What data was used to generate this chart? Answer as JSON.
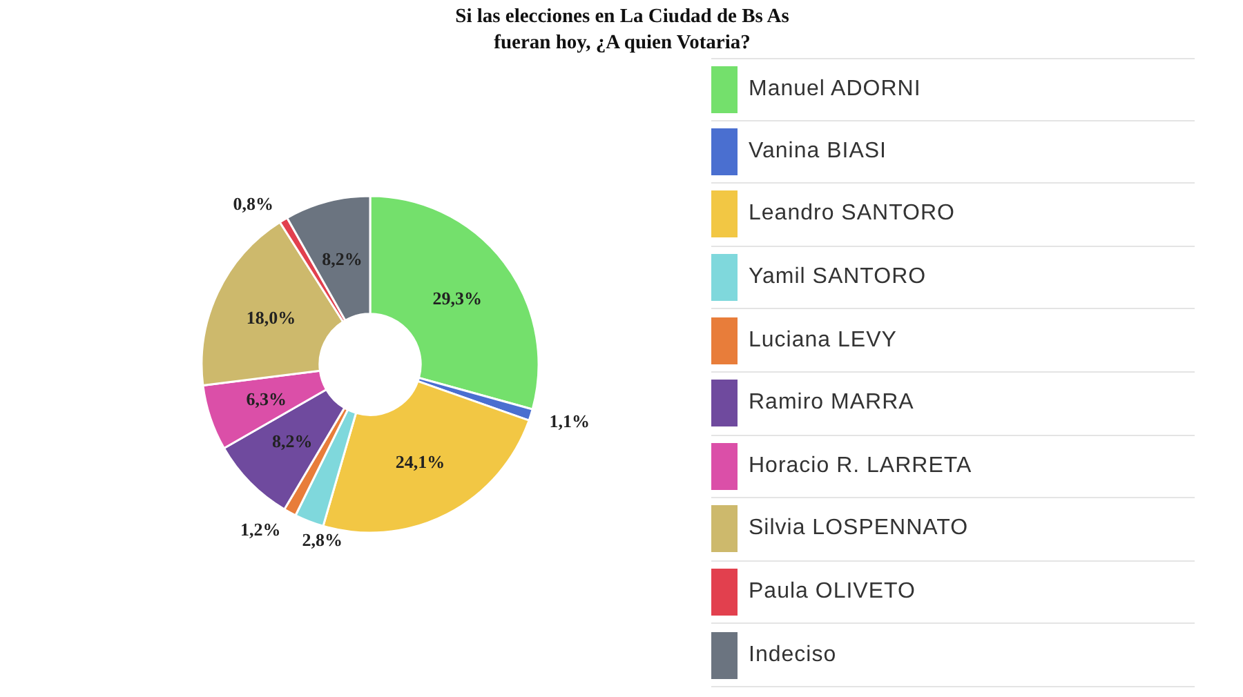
{
  "chart_data": {
    "type": "donut",
    "title": "Si las elecciones en La Ciudad de Bs As fueran hoy, ¿A quien Votaria?",
    "categories": [
      "Manuel ADORNI",
      "Vanina BIASI",
      "Leandro SANTORO",
      "Yamil SANTORO",
      "Luciana LEVY",
      "Ramiro MARRA",
      "Horacio R. LARRETA",
      "Silvia LOSPENNATO",
      "Paula OLIVETO",
      "Indeciso"
    ],
    "values": [
      29.3,
      1.1,
      24.1,
      2.8,
      1.2,
      8.2,
      6.3,
      18.0,
      0.8,
      8.2
    ],
    "colors": [
      "#74e06c",
      "#4a6fd0",
      "#f2c744",
      "#7fd8dc",
      "#e87d3a",
      "#6f4a9e",
      "#db4fa8",
      "#cdb96c",
      "#e2404e",
      "#6b7480"
    ],
    "value_labels": [
      "29,3%",
      "1,1%",
      "24,1%",
      "2,8%",
      "1,2%",
      "8,2%",
      "6,3%",
      "18,0%",
      "0,8%",
      "8,2%"
    ],
    "legend": "right"
  }
}
